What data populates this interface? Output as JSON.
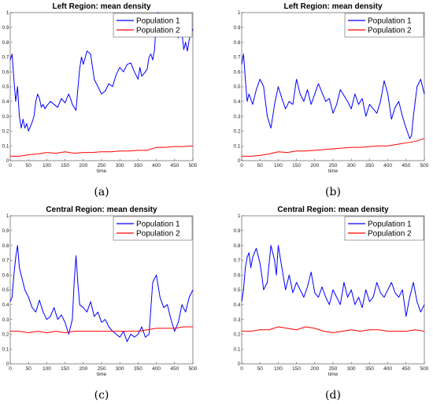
{
  "chart_data": [
    {
      "type": "line",
      "title": "Left Region: mean density",
      "xlabel": "time",
      "ylabel": "",
      "xlim": [
        0,
        500
      ],
      "ylim": [
        0,
        1
      ],
      "xticks": [
        "0",
        "50",
        "100",
        "150",
        "200",
        "250",
        "300",
        "350",
        "400",
        "450",
        "500"
      ],
      "yticks": [
        "0",
        "0.1",
        "0.2",
        "0.3",
        "0.4",
        "0.5",
        "0.6",
        "0.7",
        "0.8",
        "0.9",
        "1"
      ],
      "legend": "top-right",
      "caption": "(a)",
      "series": [
        {
          "name": "Population 1",
          "color": "#0000ff",
          "x": [
            0,
            5,
            10,
            15,
            20,
            25,
            30,
            35,
            40,
            45,
            50,
            55,
            60,
            65,
            70,
            75,
            80,
            85,
            90,
            95,
            100,
            110,
            120,
            130,
            140,
            150,
            160,
            165,
            170,
            175,
            180,
            185,
            190,
            195,
            200,
            210,
            220,
            230,
            240,
            250,
            260,
            270,
            280,
            290,
            300,
            310,
            320,
            330,
            340,
            350,
            355,
            360,
            370,
            375,
            380,
            385,
            390,
            395,
            400,
            405,
            410,
            420,
            430,
            440,
            450,
            460,
            470,
            475,
            480,
            485,
            490,
            495,
            500
          ],
          "y": [
            0.68,
            0.72,
            0.55,
            0.4,
            0.5,
            0.3,
            0.22,
            0.28,
            0.22,
            0.25,
            0.2,
            0.23,
            0.26,
            0.3,
            0.4,
            0.45,
            0.42,
            0.36,
            0.38,
            0.35,
            0.37,
            0.4,
            0.38,
            0.36,
            0.42,
            0.39,
            0.45,
            0.42,
            0.38,
            0.36,
            0.34,
            0.48,
            0.62,
            0.7,
            0.65,
            0.74,
            0.72,
            0.55,
            0.5,
            0.45,
            0.47,
            0.52,
            0.5,
            0.58,
            0.63,
            0.6,
            0.65,
            0.66,
            0.6,
            0.55,
            0.63,
            0.57,
            0.6,
            0.62,
            0.7,
            0.72,
            0.68,
            0.75,
            0.95,
            1.0,
            0.9,
            0.85,
            0.97,
            0.88,
            0.93,
            0.83,
            0.87,
            0.75,
            0.8,
            0.74,
            0.82,
            0.86,
            0.89
          ]
        },
        {
          "name": "Population 2",
          "color": "#ff0000",
          "x": [
            0,
            25,
            50,
            75,
            100,
            125,
            150,
            175,
            200,
            225,
            250,
            275,
            300,
            325,
            350,
            375,
            400,
            425,
            450,
            475,
            500
          ],
          "y": [
            0.03,
            0.03,
            0.04,
            0.045,
            0.055,
            0.05,
            0.06,
            0.05,
            0.055,
            0.055,
            0.06,
            0.06,
            0.065,
            0.065,
            0.07,
            0.07,
            0.09,
            0.09,
            0.095,
            0.095,
            0.1
          ]
        }
      ]
    },
    {
      "type": "line",
      "title": "Left Region: mean density",
      "xlabel": "time",
      "ylabel": "",
      "xlim": [
        0,
        500
      ],
      "ylim": [
        0,
        1
      ],
      "xticks": [
        "0",
        "50",
        "100",
        "150",
        "200",
        "250",
        "300",
        "350",
        "400",
        "450",
        "500"
      ],
      "yticks": [
        "0",
        "0.1",
        "0.2",
        "0.3",
        "0.4",
        "0.5",
        "0.6",
        "0.7",
        "0.8",
        "0.9",
        "1"
      ],
      "legend": "top-right",
      "caption": "(b)",
      "series": [
        {
          "name": "Population 1",
          "color": "#0000ff",
          "x": [
            0,
            5,
            10,
            15,
            20,
            30,
            40,
            50,
            60,
            70,
            80,
            90,
            100,
            110,
            120,
            130,
            140,
            150,
            160,
            170,
            180,
            190,
            200,
            210,
            220,
            230,
            240,
            250,
            260,
            270,
            280,
            290,
            300,
            310,
            320,
            330,
            340,
            350,
            360,
            370,
            380,
            390,
            400,
            410,
            420,
            430,
            440,
            450,
            460,
            465,
            470,
            480,
            490,
            500
          ],
          "y": [
            0.65,
            0.72,
            0.55,
            0.4,
            0.45,
            0.38,
            0.48,
            0.55,
            0.5,
            0.3,
            0.22,
            0.38,
            0.5,
            0.42,
            0.35,
            0.4,
            0.38,
            0.55,
            0.45,
            0.4,
            0.48,
            0.38,
            0.45,
            0.52,
            0.46,
            0.4,
            0.42,
            0.32,
            0.38,
            0.48,
            0.44,
            0.4,
            0.35,
            0.45,
            0.38,
            0.42,
            0.3,
            0.38,
            0.35,
            0.32,
            0.4,
            0.54,
            0.45,
            0.28,
            0.36,
            0.4,
            0.3,
            0.22,
            0.15,
            0.17,
            0.3,
            0.5,
            0.55,
            0.45
          ]
        },
        {
          "name": "Population 2",
          "color": "#ff0000",
          "x": [
            0,
            25,
            50,
            75,
            100,
            125,
            150,
            175,
            200,
            225,
            250,
            275,
            300,
            325,
            350,
            375,
            400,
            425,
            450,
            475,
            500
          ],
          "y": [
            0.03,
            0.03,
            0.035,
            0.045,
            0.06,
            0.055,
            0.065,
            0.065,
            0.07,
            0.075,
            0.08,
            0.085,
            0.09,
            0.09,
            0.095,
            0.1,
            0.1,
            0.11,
            0.12,
            0.13,
            0.15
          ]
        }
      ]
    },
    {
      "type": "line",
      "title": "Central Region: mean density",
      "xlabel": "time",
      "ylabel": "",
      "xlim": [
        0,
        500
      ],
      "ylim": [
        0,
        1
      ],
      "xticks": [
        "0",
        "50",
        "100",
        "150",
        "200",
        "250",
        "300",
        "350",
        "400",
        "450",
        "500"
      ],
      "yticks": [
        "0",
        "0.1",
        "0.2",
        "0.3",
        "0.4",
        "0.5",
        "0.6",
        "0.7",
        "0.8",
        "0.9",
        "1"
      ],
      "legend": "top-right",
      "caption": "(c)",
      "series": [
        {
          "name": "Population 1",
          "color": "#0000ff",
          "x": [
            0,
            5,
            10,
            15,
            20,
            25,
            30,
            35,
            40,
            50,
            60,
            70,
            80,
            90,
            100,
            110,
            120,
            130,
            140,
            150,
            160,
            170,
            175,
            180,
            185,
            190,
            200,
            210,
            220,
            230,
            240,
            250,
            260,
            270,
            280,
            290,
            300,
            310,
            320,
            330,
            340,
            350,
            360,
            370,
            380,
            390,
            400,
            410,
            420,
            430,
            440,
            450,
            460,
            470,
            480,
            490,
            500
          ],
          "y": [
            0.42,
            0.45,
            0.6,
            0.72,
            0.8,
            0.65,
            0.6,
            0.55,
            0.5,
            0.45,
            0.38,
            0.35,
            0.43,
            0.35,
            0.3,
            0.32,
            0.38,
            0.3,
            0.33,
            0.28,
            0.2,
            0.3,
            0.55,
            0.73,
            0.55,
            0.4,
            0.38,
            0.35,
            0.42,
            0.32,
            0.35,
            0.28,
            0.3,
            0.25,
            0.22,
            0.2,
            0.18,
            0.22,
            0.15,
            0.2,
            0.18,
            0.2,
            0.25,
            0.18,
            0.2,
            0.55,
            0.6,
            0.45,
            0.38,
            0.4,
            0.3,
            0.22,
            0.28,
            0.4,
            0.35,
            0.45,
            0.5
          ]
        },
        {
          "name": "Population 2",
          "color": "#ff0000",
          "x": [
            0,
            25,
            50,
            75,
            100,
            125,
            150,
            175,
            200,
            225,
            250,
            275,
            300,
            325,
            350,
            375,
            400,
            425,
            450,
            475,
            500
          ],
          "y": [
            0.22,
            0.22,
            0.21,
            0.22,
            0.21,
            0.22,
            0.21,
            0.22,
            0.22,
            0.22,
            0.22,
            0.22,
            0.22,
            0.22,
            0.22,
            0.23,
            0.24,
            0.24,
            0.24,
            0.25,
            0.25
          ]
        }
      ]
    },
    {
      "type": "line",
      "title": "Central Region: mean density",
      "xlabel": "time",
      "ylabel": "",
      "xlim": [
        0,
        500
      ],
      "ylim": [
        0,
        1
      ],
      "xticks": [
        "0",
        "50",
        "100",
        "150",
        "200",
        "250",
        "300",
        "350",
        "400",
        "450",
        "500"
      ],
      "yticks": [
        "0",
        "0.1",
        "0.2",
        "0.3",
        "0.4",
        "0.5",
        "0.6",
        "0.7",
        "0.8",
        "0.9",
        "1"
      ],
      "legend": "top-right",
      "caption": "(d)",
      "series": [
        {
          "name": "Population 1",
          "color": "#0000ff",
          "x": [
            0,
            5,
            10,
            15,
            20,
            25,
            30,
            40,
            50,
            55,
            60,
            70,
            80,
            90,
            95,
            100,
            110,
            120,
            130,
            140,
            150,
            160,
            170,
            180,
            190,
            200,
            210,
            220,
            230,
            240,
            250,
            260,
            270,
            280,
            290,
            300,
            310,
            320,
            330,
            340,
            350,
            360,
            370,
            380,
            390,
            400,
            410,
            420,
            430,
            440,
            450,
            460,
            470,
            480,
            490,
            500
          ],
          "y": [
            0.42,
            0.5,
            0.65,
            0.72,
            0.75,
            0.65,
            0.72,
            0.78,
            0.68,
            0.6,
            0.5,
            0.55,
            0.8,
            0.7,
            0.6,
            0.8,
            0.65,
            0.5,
            0.6,
            0.48,
            0.55,
            0.5,
            0.45,
            0.52,
            0.62,
            0.48,
            0.45,
            0.52,
            0.45,
            0.4,
            0.5,
            0.45,
            0.4,
            0.55,
            0.45,
            0.5,
            0.4,
            0.45,
            0.38,
            0.5,
            0.42,
            0.45,
            0.55,
            0.48,
            0.45,
            0.5,
            0.55,
            0.48,
            0.45,
            0.5,
            0.32,
            0.45,
            0.55,
            0.42,
            0.35,
            0.4
          ]
        },
        {
          "name": "Population 2",
          "color": "#ff0000",
          "x": [
            0,
            25,
            50,
            75,
            100,
            125,
            150,
            175,
            200,
            225,
            250,
            275,
            300,
            325,
            350,
            375,
            400,
            425,
            450,
            475,
            500
          ],
          "y": [
            0.22,
            0.22,
            0.23,
            0.23,
            0.25,
            0.24,
            0.23,
            0.25,
            0.24,
            0.22,
            0.21,
            0.22,
            0.23,
            0.22,
            0.23,
            0.23,
            0.22,
            0.22,
            0.22,
            0.23,
            0.22
          ]
        }
      ]
    }
  ]
}
